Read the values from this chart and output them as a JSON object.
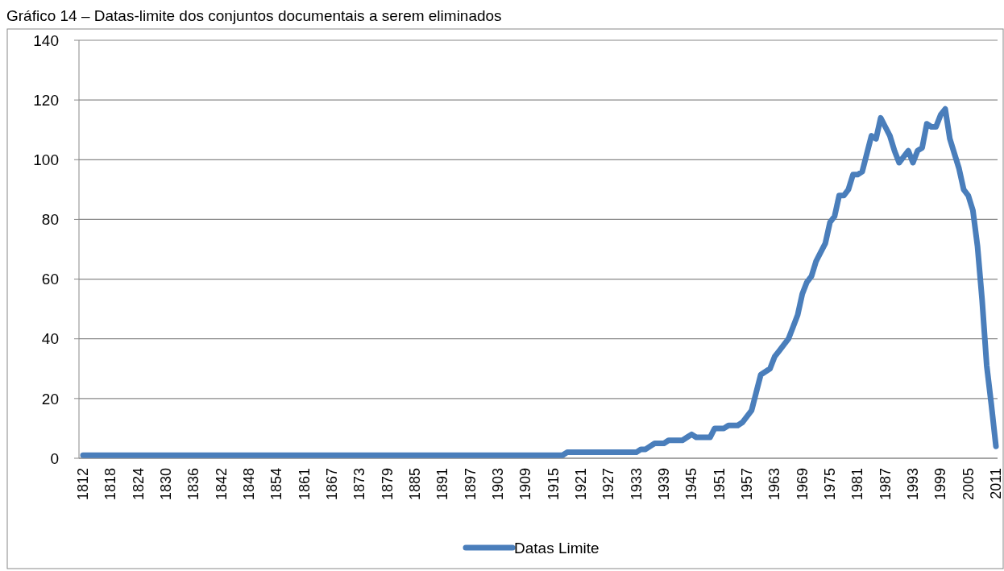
{
  "chart_data": {
    "type": "line",
    "title": "Gráfico 14 – Datas-limite dos conjuntos documentais a serem eliminados",
    "categories": [
      "1812",
      null,
      null,
      null,
      null,
      null,
      "1818",
      null,
      null,
      null,
      null,
      null,
      "1824",
      null,
      null,
      null,
      null,
      null,
      "1830",
      null,
      null,
      null,
      null,
      null,
      "1836",
      null,
      null,
      null,
      null,
      null,
      "1842",
      null,
      null,
      null,
      null,
      null,
      "1848",
      null,
      null,
      null,
      null,
      null,
      "1854",
      null,
      null,
      null,
      null,
      null,
      "1861",
      null,
      null,
      null,
      null,
      null,
      "1867",
      null,
      null,
      null,
      null,
      null,
      "1873",
      null,
      null,
      null,
      null,
      null,
      "1879",
      null,
      null,
      null,
      null,
      null,
      "1885",
      null,
      null,
      null,
      null,
      null,
      "1891",
      null,
      null,
      null,
      null,
      null,
      "1897",
      null,
      null,
      null,
      null,
      null,
      "1903",
      null,
      null,
      null,
      null,
      null,
      "1909",
      null,
      null,
      null,
      null,
      null,
      "1915",
      null,
      null,
      null,
      null,
      null,
      "1921",
      null,
      null,
      null,
      null,
      null,
      "1927",
      null,
      null,
      null,
      null,
      null,
      "1933",
      null,
      null,
      null,
      null,
      null,
      "1939",
      null,
      null,
      null,
      null,
      null,
      "1945",
      null,
      null,
      null,
      null,
      null,
      "1951",
      null,
      null,
      null,
      null,
      null,
      "1957",
      null,
      null,
      null,
      null,
      null,
      "1963",
      null,
      null,
      null,
      null,
      null,
      "1969",
      null,
      null,
      null,
      null,
      null,
      "1975",
      null,
      null,
      null,
      null,
      null,
      "1981",
      null,
      null,
      null,
      null,
      null,
      "1987",
      null,
      null,
      null,
      null,
      null,
      "1993",
      null,
      null,
      null,
      null,
      null,
      "1999",
      null,
      null,
      null,
      null,
      null,
      "2005",
      null,
      null,
      null,
      null,
      null,
      "2011"
    ],
    "series": [
      {
        "name": "Datas Limite",
        "color": "#4a7ebb",
        "values": [
          1,
          1,
          1,
          1,
          1,
          1,
          1,
          1,
          1,
          1,
          1,
          1,
          1,
          1,
          1,
          1,
          1,
          1,
          1,
          1,
          1,
          1,
          1,
          1,
          1,
          1,
          1,
          1,
          1,
          1,
          1,
          1,
          1,
          1,
          1,
          1,
          1,
          1,
          1,
          1,
          1,
          1,
          1,
          1,
          1,
          1,
          1,
          1,
          1,
          1,
          1,
          1,
          1,
          1,
          1,
          1,
          1,
          1,
          1,
          1,
          1,
          1,
          1,
          1,
          1,
          1,
          1,
          1,
          1,
          1,
          1,
          1,
          1,
          1,
          1,
          1,
          1,
          1,
          1,
          1,
          1,
          1,
          1,
          1,
          1,
          1,
          1,
          1,
          1,
          1,
          1,
          1,
          1,
          1,
          1,
          1,
          1,
          1,
          1,
          1,
          1,
          1,
          1,
          1,
          1,
          2,
          2,
          2,
          2,
          2,
          2,
          2,
          2,
          2,
          2,
          2,
          2,
          2,
          2,
          2,
          2,
          3,
          3,
          4,
          5,
          5,
          5,
          6,
          6,
          6,
          6,
          7,
          8,
          7,
          7,
          7,
          7,
          10,
          10,
          10,
          11,
          11,
          11,
          12,
          14,
          16,
          22,
          28,
          29,
          30,
          34,
          36,
          38,
          40,
          44,
          48,
          55,
          59,
          61,
          66,
          69,
          72,
          79,
          81,
          88,
          88,
          90,
          95,
          95,
          96,
          102,
          108,
          107,
          114,
          111,
          108,
          103,
          99,
          101,
          103,
          99,
          103,
          104,
          112,
          111,
          111,
          115,
          117,
          107,
          102,
          97,
          90,
          88,
          83,
          71,
          53,
          31,
          18,
          4
        ]
      }
    ],
    "ylim": [
      0,
      140
    ],
    "yticks": [
      0,
      20,
      40,
      60,
      80,
      100,
      120,
      140
    ],
    "grid": "y",
    "legend": "bottom",
    "marker": "none",
    "line_style": "solid"
  }
}
